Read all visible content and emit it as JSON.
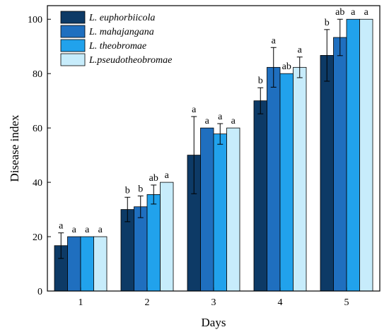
{
  "chart_data": {
    "type": "bar",
    "xlabel": "Days",
    "ylabel": "Disease index",
    "ylim": [
      0,
      105
    ],
    "yticks": [
      "0",
      "20",
      "40",
      "60",
      "80",
      "100"
    ],
    "categories": [
      "1",
      "2",
      "3",
      "4",
      "5"
    ],
    "legend_position": "top-left",
    "series": [
      {
        "name": "L. euphorbiicola",
        "color": "#0d3a66",
        "values": [
          16.7,
          30,
          50,
          70,
          86.7
        ],
        "errors": [
          4.7,
          4.5,
          14.2,
          4.8,
          9.5
        ],
        "labels": [
          "a",
          "b",
          "a",
          "b",
          "b"
        ]
      },
      {
        "name": "L. mahajangana",
        "color": "#1f6fbf",
        "values": [
          20,
          31,
          60,
          82.3,
          93.3
        ],
        "errors": [
          0,
          4,
          0,
          7.3,
          6.7
        ],
        "labels": [
          "a",
          "b",
          "a",
          "a",
          "ab"
        ]
      },
      {
        "name": "L. theobromae",
        "color": "#21a2ec",
        "values": [
          20,
          35.5,
          57.8,
          80,
          100
        ],
        "errors": [
          0,
          3.5,
          3.8,
          0,
          0
        ],
        "labels": [
          "a",
          "ab",
          "a",
          "ab",
          "a"
        ]
      },
      {
        "name": "L.pseudotheobromae",
        "color": "#c7ecfb",
        "values": [
          20,
          40,
          60,
          82.3,
          100
        ],
        "errors": [
          0,
          0,
          0,
          3.8,
          0
        ],
        "labels": [
          "a",
          "a",
          "a",
          "a",
          "a"
        ]
      }
    ]
  }
}
